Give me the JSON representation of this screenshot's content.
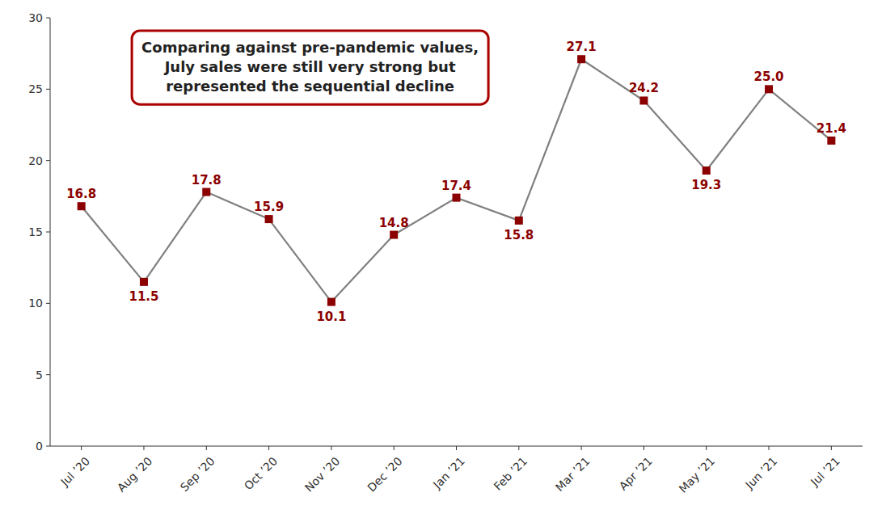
{
  "chart_data": {
    "type": "line",
    "categories": [
      "Jul ’20",
      "Aug ’20",
      "Sep ’20",
      "Oct ’20",
      "Nov ’20",
      "Dec ’20",
      "Jan ’21",
      "Feb ’21",
      "Mar ’21",
      "Apr ’21",
      "May ’21",
      "Jun ’21",
      "Jul ’21"
    ],
    "values": [
      16.8,
      11.5,
      17.8,
      15.9,
      10.1,
      14.8,
      17.4,
      15.8,
      27.1,
      24.2,
      19.3,
      25.0,
      21.4
    ],
    "value_labels": [
      "16.8",
      "11.5",
      "17.8",
      "15.9",
      "10.1",
      "14.8",
      "17.4",
      "15.8",
      "27.1",
      "24.2",
      "19.3",
      "25.0",
      "21.4"
    ],
    "color": "#808080",
    "marker": "square",
    "data_labels": true,
    "annotations": [
      "Comparing against pre-pandemic values,\nJuly sales were still very strong but\nrepresented the sequential decline"
    ],
    "ylim": [
      0,
      30
    ],
    "yticks": [
      0,
      5,
      10,
      15,
      20,
      25,
      30
    ],
    "grid": false
  }
}
